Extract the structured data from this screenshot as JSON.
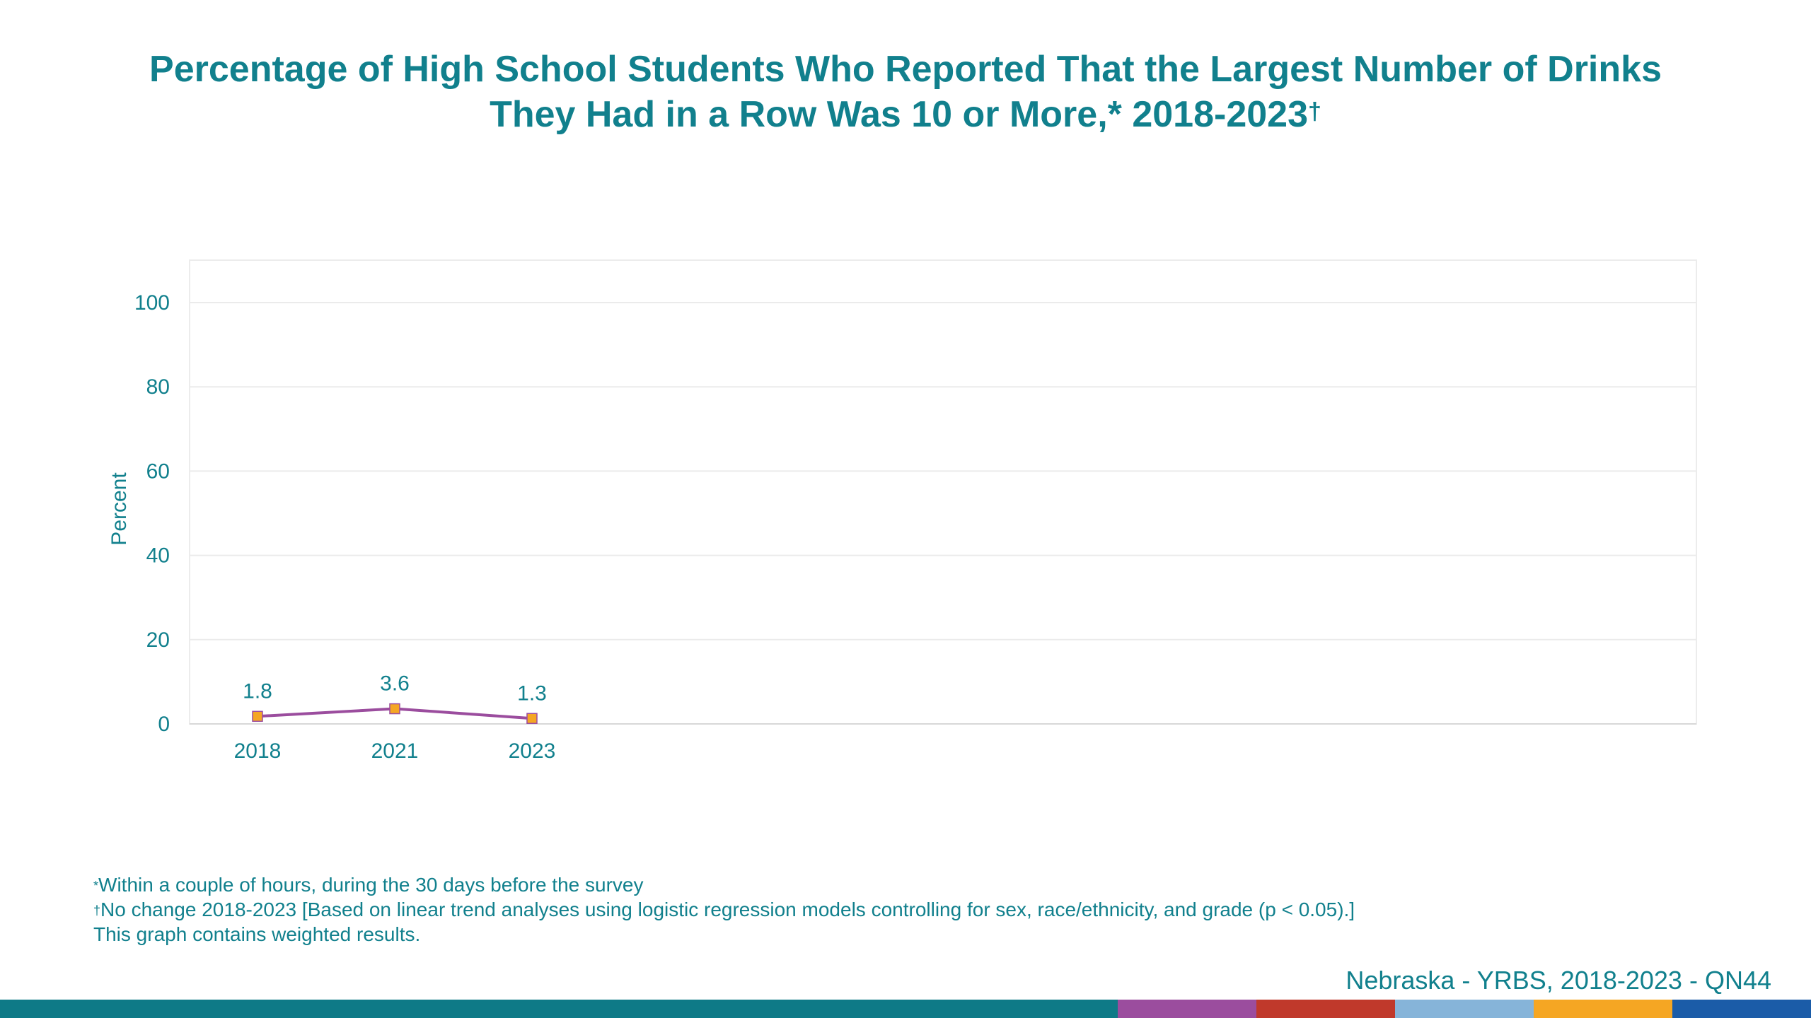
{
  "title": {
    "line1": "Percentage of High School Students Who Reported That the Largest Number of Drinks",
    "line2": "They Had in a Row Was 10 or More,* 2018-2023",
    "dagger": "†"
  },
  "chart_data": {
    "type": "line",
    "x": [
      "2018",
      "2021",
      "2023"
    ],
    "series": [
      {
        "values": [
          1.8,
          3.6,
          1.3
        ]
      }
    ],
    "data_labels": [
      "1.8",
      "3.6",
      "1.3"
    ],
    "ylabel": "Percent",
    "xlabel": "",
    "ylim": [
      0,
      100
    ],
    "yticks": [
      "0",
      "20",
      "40",
      "60",
      "80",
      "100"
    ],
    "grid": true,
    "line_color": "#9b4d9e",
    "marker_color": "#f5a623",
    "text_color": "#11808d"
  },
  "footnotes": {
    "note1_mark": "*",
    "note1": "Within a couple of hours, during the 30 days before the survey",
    "note2_mark": "†",
    "note2": "No change 2018-2023 [Based on linear trend analyses using logistic regression models controlling for sex, race/ethnicity, and grade (p < 0.05).]",
    "note3": "This graph contains weighted results."
  },
  "source": "Nebraska - YRBS, 2018-2023 - QN44",
  "bottom_bar_colors": [
    "#0e7a87",
    "#9b4d9e",
    "#c0392b",
    "#86b4d9",
    "#f5a623",
    "#1b5ca8"
  ]
}
